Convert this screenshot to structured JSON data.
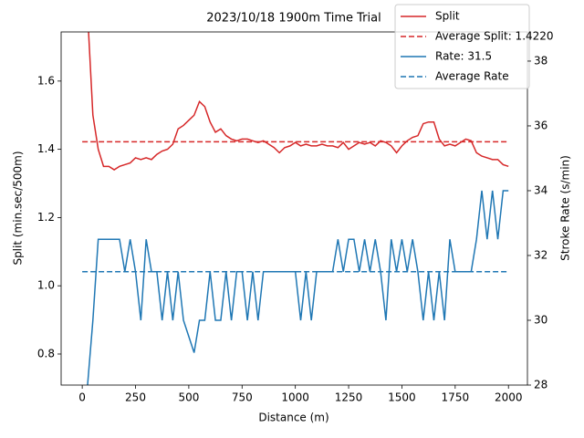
{
  "chart_data": {
    "type": "line",
    "title": "2023/10/18 1900m Time Trial",
    "x_label": "Distance (m)",
    "y_label": "Split (min.sec/500m)",
    "y2_label": "Stroke Rate (s/min)",
    "xlim": [
      -99,
      2089
    ],
    "xticks": [
      0,
      250,
      500,
      750,
      1000,
      1250,
      1500,
      1750,
      2000
    ],
    "ylim": [
      0.709,
      1.744
    ],
    "yticks": [
      0.8,
      {
        "value": 1,
        "label": "1.0"
      },
      1.2,
      1.4,
      1.6
    ],
    "y2lim": [
      28,
      38.9
    ],
    "y2ticks": [
      28,
      30,
      32,
      34,
      36,
      38
    ],
    "grid": false,
    "legend": "upper right",
    "series": [
      {
        "name": "Split",
        "color": "#d62728",
        "dash": false,
        "axis": "y",
        "x": [
          25,
          50,
          75,
          100,
          125,
          150,
          175,
          200,
          225,
          250,
          275,
          300,
          325,
          350,
          375,
          400,
          425,
          450,
          475,
          500,
          525,
          550,
          575,
          600,
          625,
          650,
          675,
          700,
          725,
          750,
          775,
          800,
          825,
          850,
          875,
          900,
          925,
          950,
          975,
          1000,
          1025,
          1050,
          1075,
          1100,
          1125,
          1150,
          1175,
          1200,
          1225,
          1250,
          1275,
          1300,
          1325,
          1350,
          1375,
          1400,
          1425,
          1450,
          1475,
          1500,
          1525,
          1550,
          1575,
          1600,
          1625,
          1650,
          1675,
          1700,
          1725,
          1750,
          1775,
          1800,
          1825,
          1850,
          1875,
          1900,
          1925,
          1950,
          1975,
          2000
        ],
        "values": [
          1.8,
          1.5,
          1.4,
          1.35,
          1.35,
          1.34,
          1.35,
          1.355,
          1.36,
          1.375,
          1.37,
          1.375,
          1.37,
          1.385,
          1.395,
          1.4,
          1.415,
          1.46,
          1.47,
          1.485,
          1.5,
          1.54,
          1.525,
          1.48,
          1.45,
          1.46,
          1.44,
          1.43,
          1.425,
          1.43,
          1.43,
          1.425,
          1.42,
          1.425,
          1.415,
          1.405,
          1.39,
          1.405,
          1.41,
          1.42,
          1.41,
          1.415,
          1.41,
          1.41,
          1.415,
          1.41,
          1.41,
          1.405,
          1.42,
          1.4,
          1.41,
          1.42,
          1.415,
          1.42,
          1.41,
          1.425,
          1.42,
          1.41,
          1.39,
          1.41,
          1.425,
          1.435,
          1.44,
          1.475,
          1.48,
          1.48,
          1.43,
          1.41,
          1.415,
          1.41,
          1.42,
          1.43,
          1.425,
          1.39,
          1.38,
          1.375,
          1.37,
          1.37,
          1.355,
          1.35
        ]
      },
      {
        "name": "Average Split: 1.4220",
        "color": "#d62728",
        "dash": true,
        "axis": "y",
        "x": [
          0,
          2000
        ],
        "values": [
          1.422,
          1.422
        ]
      },
      {
        "name": "Rate: 31.5",
        "color": "#1f77b4",
        "dash": false,
        "axis": "y2",
        "x": [
          25,
          50,
          75,
          100,
          125,
          150,
          175,
          200,
          225,
          250,
          275,
          300,
          325,
          350,
          375,
          400,
          425,
          450,
          475,
          500,
          525,
          550,
          575,
          600,
          625,
          650,
          675,
          700,
          725,
          750,
          775,
          800,
          825,
          850,
          875,
          900,
          925,
          950,
          975,
          1000,
          1025,
          1050,
          1075,
          1100,
          1125,
          1150,
          1175,
          1200,
          1225,
          1250,
          1275,
          1300,
          1325,
          1350,
          1375,
          1400,
          1425,
          1450,
          1475,
          1500,
          1525,
          1550,
          1575,
          1600,
          1625,
          1650,
          1675,
          1700,
          1725,
          1750,
          1775,
          1800,
          1825,
          1850,
          1875,
          1900,
          1925,
          1950,
          1975,
          2000
        ],
        "values": [
          28,
          30,
          32.5,
          32.5,
          32.5,
          32.5,
          32.5,
          31.5,
          32.5,
          31.5,
          30,
          32.5,
          31.5,
          31.5,
          30,
          31.5,
          30,
          31.5,
          30,
          29.5,
          29,
          30,
          30,
          31.5,
          30,
          30,
          31.5,
          30,
          31.5,
          31.5,
          30,
          31.5,
          30,
          31.5,
          31.5,
          31.5,
          31.5,
          31.5,
          31.5,
          31.5,
          30,
          31.5,
          30,
          31.5,
          31.5,
          31.5,
          31.5,
          32.5,
          31.5,
          32.5,
          32.5,
          31.5,
          32.5,
          31.5,
          32.5,
          31.5,
          30,
          32.5,
          31.5,
          32.5,
          31.5,
          32.5,
          31.5,
          30,
          31.5,
          30,
          31.5,
          30,
          32.5,
          31.5,
          31.5,
          31.5,
          31.5,
          32.5,
          34,
          32.5,
          34,
          32.5,
          34,
          34
        ]
      },
      {
        "name": "Average Rate",
        "color": "#1f77b4",
        "dash": true,
        "axis": "y2",
        "x": [
          0,
          2000
        ],
        "values": [
          31.5,
          31.5
        ]
      }
    ]
  }
}
